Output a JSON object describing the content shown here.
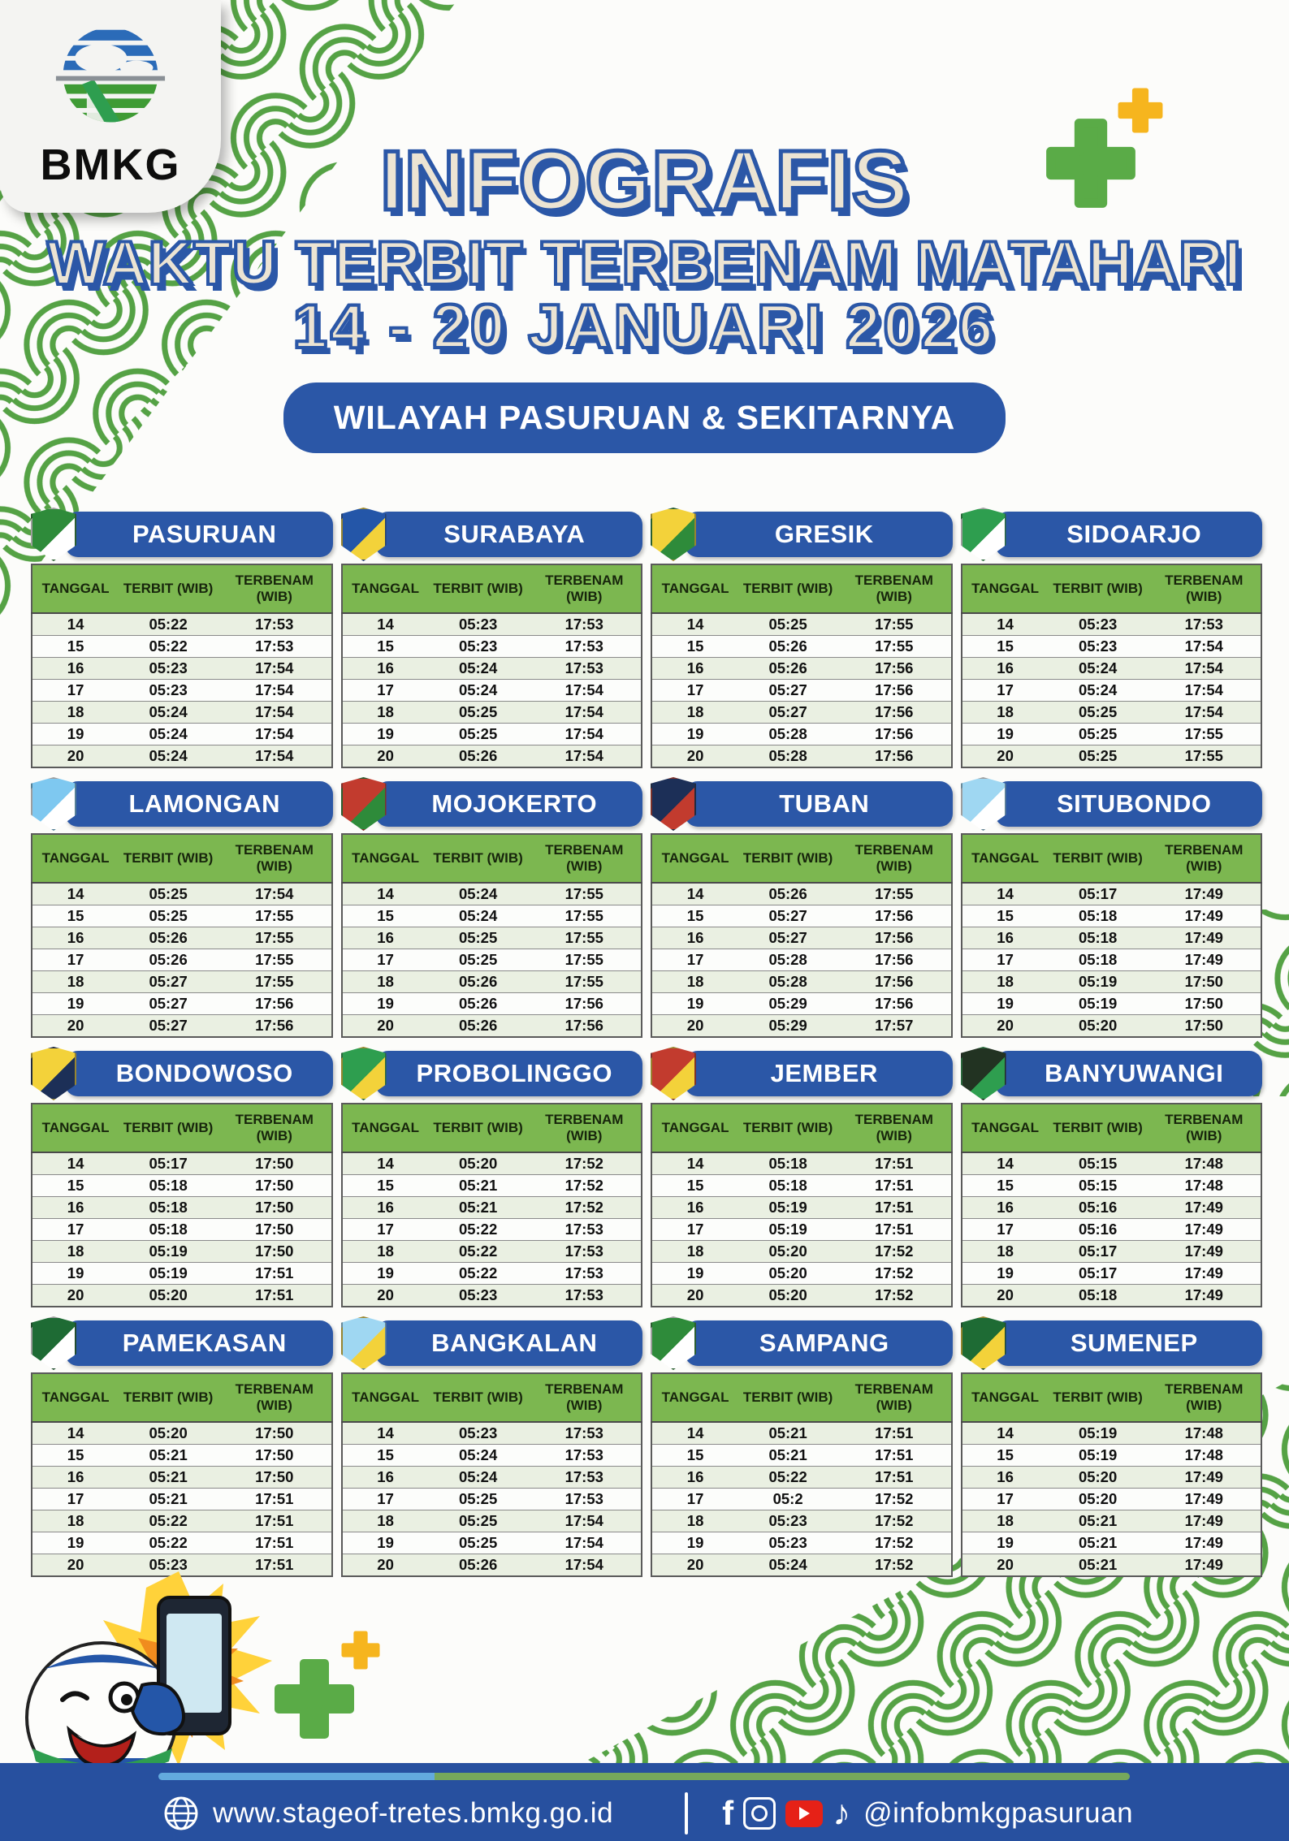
{
  "brand": {
    "logo_text": "BMKG"
  },
  "header": {
    "title": "INFOGRAFIS",
    "subtitle": "WAKTU TERBIT TERBENAM MATAHARI",
    "date_range": "14 - 20 JANUARI  2026",
    "region_pill": "WILAYAH PASURUAN & SEKITARNYA"
  },
  "table_headers": {
    "tanggal": "TANGGAL",
    "terbit": "TERBIT (WIB)",
    "terbenam": "TERBENAM (WIB)"
  },
  "cities": [
    {
      "name": "PASURUAN",
      "emblem_colors": [
        "#2e8b3a",
        "#ffffff"
      ],
      "rows": [
        [
          "14",
          "05:22",
          "17:53"
        ],
        [
          "15",
          "05:22",
          "17:53"
        ],
        [
          "16",
          "05:23",
          "17:54"
        ],
        [
          "17",
          "05:23",
          "17:54"
        ],
        [
          "18",
          "05:24",
          "17:54"
        ],
        [
          "19",
          "05:24",
          "17:54"
        ],
        [
          "20",
          "05:24",
          "17:54"
        ]
      ]
    },
    {
      "name": "SURABAYA",
      "emblem_colors": [
        "#2456a8",
        "#f3d23a"
      ],
      "rows": [
        [
          "14",
          "05:23",
          "17:53"
        ],
        [
          "15",
          "05:23",
          "17:53"
        ],
        [
          "16",
          "05:24",
          "17:53"
        ],
        [
          "17",
          "05:24",
          "17:54"
        ],
        [
          "18",
          "05:25",
          "17:54"
        ],
        [
          "19",
          "05:25",
          "17:54"
        ],
        [
          "20",
          "05:26",
          "17:54"
        ]
      ]
    },
    {
      "name": "GRESIK",
      "emblem_colors": [
        "#f3d23a",
        "#2e8b3a"
      ],
      "rows": [
        [
          "14",
          "05:25",
          "17:55"
        ],
        [
          "15",
          "05:26",
          "17:55"
        ],
        [
          "16",
          "05:26",
          "17:56"
        ],
        [
          "17",
          "05:27",
          "17:56"
        ],
        [
          "18",
          "05:27",
          "17:56"
        ],
        [
          "19",
          "05:28",
          "17:56"
        ],
        [
          "20",
          "05:28",
          "17:56"
        ]
      ]
    },
    {
      "name": "SIDOARJO",
      "emblem_colors": [
        "#2e9e4f",
        "#ffffff"
      ],
      "rows": [
        [
          "14",
          "05:23",
          "17:53"
        ],
        [
          "15",
          "05:23",
          "17:54"
        ],
        [
          "16",
          "05:24",
          "17:54"
        ],
        [
          "17",
          "05:24",
          "17:54"
        ],
        [
          "18",
          "05:25",
          "17:54"
        ],
        [
          "19",
          "05:25",
          "17:55"
        ],
        [
          "20",
          "05:25",
          "17:55"
        ]
      ]
    },
    {
      "name": "LAMONGAN",
      "emblem_colors": [
        "#7ec8f0",
        "#ffffff"
      ],
      "rows": [
        [
          "14",
          "05:25",
          "17:54"
        ],
        [
          "15",
          "05:25",
          "17:55"
        ],
        [
          "16",
          "05:26",
          "17:55"
        ],
        [
          "17",
          "05:26",
          "17:55"
        ],
        [
          "18",
          "05:27",
          "17:55"
        ],
        [
          "19",
          "05:27",
          "17:56"
        ],
        [
          "20",
          "05:27",
          "17:56"
        ]
      ]
    },
    {
      "name": "MOJOKERTO",
      "emblem_colors": [
        "#c23b2e",
        "#2e8b3a"
      ],
      "rows": [
        [
          "14",
          "05:24",
          "17:55"
        ],
        [
          "15",
          "05:24",
          "17:55"
        ],
        [
          "16",
          "05:25",
          "17:55"
        ],
        [
          "17",
          "05:25",
          "17:55"
        ],
        [
          "18",
          "05:26",
          "17:55"
        ],
        [
          "19",
          "05:26",
          "17:56"
        ],
        [
          "20",
          "05:26",
          "17:56"
        ]
      ]
    },
    {
      "name": "TUBAN",
      "emblem_colors": [
        "#1c2f57",
        "#c23b2e"
      ],
      "rows": [
        [
          "14",
          "05:26",
          "17:55"
        ],
        [
          "15",
          "05:27",
          "17:56"
        ],
        [
          "16",
          "05:27",
          "17:56"
        ],
        [
          "17",
          "05:28",
          "17:56"
        ],
        [
          "18",
          "05:28",
          "17:56"
        ],
        [
          "19",
          "05:29",
          "17:56"
        ],
        [
          "20",
          "05:29",
          "17:57"
        ]
      ]
    },
    {
      "name": "SITUBONDO",
      "emblem_colors": [
        "#9fd7f2",
        "#ffffff"
      ],
      "rows": [
        [
          "14",
          "05:17",
          "17:49"
        ],
        [
          "15",
          "05:18",
          "17:49"
        ],
        [
          "16",
          "05:18",
          "17:49"
        ],
        [
          "17",
          "05:18",
          "17:49"
        ],
        [
          "18",
          "05:19",
          "17:50"
        ],
        [
          "19",
          "05:19",
          "17:50"
        ],
        [
          "20",
          "05:20",
          "17:50"
        ]
      ]
    },
    {
      "name": "BONDOWOSO",
      "emblem_colors": [
        "#f3d23a",
        "#1c2f57"
      ],
      "rows": [
        [
          "14",
          "05:17",
          "17:50"
        ],
        [
          "15",
          "05:18",
          "17:50"
        ],
        [
          "16",
          "05:18",
          "17:50"
        ],
        [
          "17",
          "05:18",
          "17:50"
        ],
        [
          "18",
          "05:19",
          "17:50"
        ],
        [
          "19",
          "05:19",
          "17:51"
        ],
        [
          "20",
          "05:20",
          "17:51"
        ]
      ]
    },
    {
      "name": "PROBOLINGGO",
      "emblem_colors": [
        "#2e9e4f",
        "#f3d23a"
      ],
      "rows": [
        [
          "14",
          "05:20",
          "17:52"
        ],
        [
          "15",
          "05:21",
          "17:52"
        ],
        [
          "16",
          "05:21",
          "17:52"
        ],
        [
          "17",
          "05:22",
          "17:53"
        ],
        [
          "18",
          "05:22",
          "17:53"
        ],
        [
          "19",
          "05:22",
          "17:53"
        ],
        [
          "20",
          "05:23",
          "17:53"
        ]
      ]
    },
    {
      "name": "JEMBER",
      "emblem_colors": [
        "#c23b2e",
        "#f3d23a"
      ],
      "rows": [
        [
          "14",
          "05:18",
          "17:51"
        ],
        [
          "15",
          "05:18",
          "17:51"
        ],
        [
          "16",
          "05:19",
          "17:51"
        ],
        [
          "17",
          "05:19",
          "17:51"
        ],
        [
          "18",
          "05:20",
          "17:52"
        ],
        [
          "19",
          "05:20",
          "17:52"
        ],
        [
          "20",
          "05:20",
          "17:52"
        ]
      ]
    },
    {
      "name": "BANYUWANGI",
      "emblem_colors": [
        "#223322",
        "#2e9e4f"
      ],
      "rows": [
        [
          "14",
          "05:15",
          "17:48"
        ],
        [
          "15",
          "05:15",
          "17:48"
        ],
        [
          "16",
          "05:16",
          "17:49"
        ],
        [
          "17",
          "05:16",
          "17:49"
        ],
        [
          "18",
          "05:17",
          "17:49"
        ],
        [
          "19",
          "05:17",
          "17:49"
        ],
        [
          "20",
          "05:18",
          "17:49"
        ]
      ]
    },
    {
      "name": "PAMEKASAN",
      "emblem_colors": [
        "#1e6b34",
        "#ffffff"
      ],
      "rows": [
        [
          "14",
          "05:20",
          "17:50"
        ],
        [
          "15",
          "05:21",
          "17:50"
        ],
        [
          "16",
          "05:21",
          "17:50"
        ],
        [
          "17",
          "05:21",
          "17:51"
        ],
        [
          "18",
          "05:22",
          "17:51"
        ],
        [
          "19",
          "05:22",
          "17:51"
        ],
        [
          "20",
          "05:23",
          "17:51"
        ]
      ]
    },
    {
      "name": "BANGKALAN",
      "emblem_colors": [
        "#9fd7f2",
        "#f3d23a"
      ],
      "rows": [
        [
          "14",
          "05:23",
          "17:53"
        ],
        [
          "15",
          "05:24",
          "17:53"
        ],
        [
          "16",
          "05:24",
          "17:53"
        ],
        [
          "17",
          "05:25",
          "17:53"
        ],
        [
          "18",
          "05:25",
          "17:54"
        ],
        [
          "19",
          "05:25",
          "17:54"
        ],
        [
          "20",
          "05:26",
          "17:54"
        ]
      ]
    },
    {
      "name": "SAMPANG",
      "emblem_colors": [
        "#2e8b3a",
        "#ffffff"
      ],
      "rows": [
        [
          "14",
          "05:21",
          "17:51"
        ],
        [
          "15",
          "05:21",
          "17:51"
        ],
        [
          "16",
          "05:22",
          "17:51"
        ],
        [
          "17",
          "05:2",
          "17:52"
        ],
        [
          "18",
          "05:23",
          "17:52"
        ],
        [
          "19",
          "05:23",
          "17:52"
        ],
        [
          "20",
          "05:24",
          "17:52"
        ]
      ]
    },
    {
      "name": "SUMENEP",
      "emblem_colors": [
        "#1e6b34",
        "#f3d23a"
      ],
      "rows": [
        [
          "14",
          "05:19",
          "17:48"
        ],
        [
          "15",
          "05:19",
          "17:48"
        ],
        [
          "16",
          "05:20",
          "17:49"
        ],
        [
          "17",
          "05:20",
          "17:49"
        ],
        [
          "18",
          "05:21",
          "17:49"
        ],
        [
          "19",
          "05:21",
          "17:49"
        ],
        [
          "20",
          "05:21",
          "17:49"
        ]
      ]
    }
  ],
  "footer": {
    "website": "www.stageof-tretes.bmkg.go.id",
    "handle": "@infobmkgpasuruan",
    "icons": [
      "globe-icon",
      "facebook-icon",
      "instagram-icon",
      "youtube-icon",
      "tiktok-icon"
    ],
    "facebook_glyph": "f",
    "tiktok_glyph": "♪"
  },
  "colors": {
    "accent_blue": "#2b57a7",
    "footer_blue": "#27509f",
    "table_header_green": "#7cb750",
    "row_alt_green": "#eaf0e2",
    "pattern_green": "#55a245",
    "plus_green": "#5aab47",
    "plus_yellow": "#f6b51e",
    "youtube_red": "#e62117",
    "title_fill": "#ece4d3",
    "accent_line_blue": "#63aade",
    "accent_line_green": "#76a85c"
  }
}
